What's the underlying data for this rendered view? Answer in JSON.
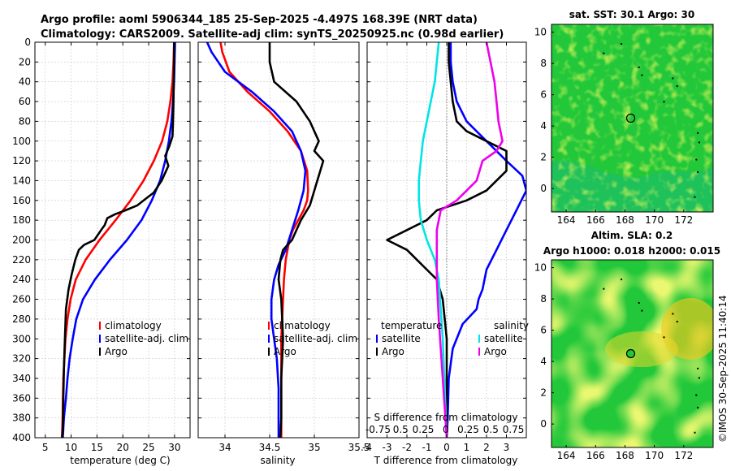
{
  "figure": {
    "title_line1": "Argo profile: aoml 5906344_185 25-Sep-2025 -4.497S 168.39E (NRT data)",
    "title_line2": "Climatology: CARS2009. Satellite-adj clim: synTS_20250925.nc (0.98d earlier)",
    "credit": "©IMOS 30-Sep-2025 11:40:14"
  },
  "colors": {
    "climatology": "#ff0000",
    "satellite": "#0000ff",
    "argo": "#000000",
    "sat_salinity": "#00e5e5",
    "argo_salinity": "#ee00ee",
    "grid": "#c8c8c8",
    "map_green": "#22c83a",
    "map_yellow": "#d8ec30"
  },
  "chart_data": [
    {
      "type": "line",
      "id": "temperature",
      "xlabel": "temperature (deg C)",
      "ylabel": "",
      "xlim": [
        3,
        33
      ],
      "ylim": [
        0,
        400
      ],
      "xticks": [
        5,
        10,
        15,
        20,
        25,
        30
      ],
      "yticks": [
        0,
        20,
        40,
        60,
        80,
        100,
        120,
        140,
        160,
        180,
        200,
        220,
        240,
        260,
        280,
        300,
        320,
        340,
        360,
        380,
        400
      ],
      "y_inverted": true,
      "grid": true,
      "legend": [
        "climatology",
        "satellite-adj. clim",
        "Argo"
      ],
      "series": [
        {
          "name": "climatology",
          "x": [
            29.9,
            29.8,
            29.6,
            29.2,
            28.6,
            27.6,
            26.0,
            24.0,
            21.5,
            18.6,
            15.5,
            12.8,
            10.9,
            9.9,
            9.3,
            8.9,
            8.7,
            8.5,
            8.4,
            8.35,
            8.3,
            8.25,
            8.2
          ],
          "y": [
            0,
            20,
            40,
            60,
            80,
            100,
            120,
            140,
            160,
            180,
            200,
            220,
            240,
            260,
            280,
            300,
            320,
            340,
            360,
            380,
            390,
            396,
            400
          ]
        },
        {
          "name": "satellite-adj. clim",
          "x": [
            30.1,
            30.0,
            29.9,
            29.7,
            29.4,
            28.9,
            28.2,
            27.2,
            25.6,
            23.6,
            20.8,
            17.5,
            14.6,
            12.3,
            11.0,
            10.3,
            9.7,
            9.3,
            9.0,
            8.8,
            8.6,
            8.5,
            8.45,
            8.4,
            8.4
          ],
          "y": [
            0,
            20,
            40,
            60,
            80,
            100,
            120,
            140,
            160,
            180,
            200,
            220,
            240,
            260,
            280,
            300,
            320,
            340,
            360,
            370,
            380,
            390,
            395,
            398,
            400
          ]
        },
        {
          "name": "Argo",
          "x": [
            29.9,
            29.9,
            29.85,
            29.8,
            29.7,
            29.6,
            29.0,
            28.2,
            28.8,
            27.5,
            26.0,
            24.5,
            22.8,
            20.5,
            18.5,
            17.0,
            16.5,
            15.8,
            14.5,
            12.5,
            11.5,
            10.8,
            10.1,
            9.5,
            9.0,
            8.8,
            8.6,
            8.5,
            8.4,
            8.3
          ],
          "y": [
            0,
            20,
            40,
            60,
            80,
            95,
            105,
            115,
            125,
            140,
            152,
            158,
            165,
            170,
            174,
            178,
            185,
            190,
            200,
            205,
            210,
            220,
            235,
            250,
            270,
            300,
            330,
            360,
            390,
            400
          ]
        }
      ]
    },
    {
      "type": "line",
      "id": "salinity",
      "xlabel": "salinity",
      "ylabel": "",
      "xlim": [
        33.7,
        35.5
      ],
      "ylim": [
        0,
        400
      ],
      "xticks": [
        34,
        34.5,
        35,
        35.5
      ],
      "y_inverted": true,
      "grid": true,
      "legend": [
        "climatology",
        "satellite-adj. clim",
        "Argo"
      ],
      "series": [
        {
          "name": "climatology",
          "x": [
            33.95,
            33.97,
            34.05,
            34.25,
            34.5,
            34.7,
            34.85,
            34.92,
            34.93,
            34.92,
            34.88,
            34.82,
            34.76,
            34.72,
            34.68,
            34.66,
            34.65,
            34.64,
            34.63,
            34.63,
            34.63,
            34.63,
            34.63
          ],
          "y": [
            0,
            10,
            30,
            50,
            70,
            90,
            110,
            130,
            150,
            160,
            170,
            180,
            190,
            200,
            220,
            240,
            260,
            280,
            300,
            320,
            350,
            380,
            400
          ]
        },
        {
          "name": "satellite-adj. clim",
          "x": [
            33.8,
            33.85,
            34.0,
            34.3,
            34.55,
            34.75,
            34.85,
            34.9,
            34.88,
            34.82,
            34.75,
            34.68,
            34.6,
            34.55,
            34.52,
            34.52,
            34.55,
            34.58,
            34.6,
            34.6,
            34.6
          ],
          "y": [
            0,
            10,
            30,
            50,
            70,
            90,
            110,
            130,
            150,
            170,
            190,
            210,
            225,
            240,
            260,
            280,
            300,
            320,
            350,
            380,
            400
          ]
        },
        {
          "name": "Argo",
          "x": [
            34.5,
            34.5,
            34.55,
            34.8,
            34.95,
            35.05,
            35.0,
            35.1,
            35.05,
            35.0,
            34.95,
            34.85,
            34.75,
            34.65,
            34.62,
            34.6,
            34.63,
            34.65,
            34.63,
            34.63,
            34.62
          ],
          "y": [
            0,
            20,
            40,
            60,
            80,
            100,
            110,
            120,
            135,
            150,
            165,
            180,
            200,
            210,
            220,
            240,
            260,
            300,
            340,
            380,
            400
          ]
        }
      ]
    },
    {
      "type": "line",
      "id": "differences",
      "xlabel": "T difference from climatology",
      "xlabel_top": "S difference from climatology",
      "xlim": [
        -4,
        4
      ],
      "ylim": [
        0,
        400
      ],
      "xticks": [
        -4,
        -3,
        -2,
        -1,
        0,
        1,
        2,
        3
      ],
      "x_ticklabels": [
        "-4",
        "-3",
        "-2",
        "-1",
        "0",
        "1",
        "2",
        "3"
      ],
      "s_ticklabels": [
        "-0.75",
        "0.5",
        "0.25",
        "0",
        "0.25",
        "0.5",
        "0.75"
      ],
      "y_inverted": true,
      "grid": true,
      "legend_temperature_title": "temperature",
      "legend_salinity_title": "salinity",
      "legend": {
        "temperature": [
          "satellite",
          "Argo"
        ],
        "salinity": [
          "satellite",
          "Argo"
        ]
      },
      "series": [
        {
          "name": "temperature satellite",
          "group": "temperature",
          "x": [
            0.2,
            0.2,
            0.3,
            0.5,
            1.0,
            2.0,
            3.0,
            3.8,
            4.0,
            3.5,
            3.0,
            2.5,
            2.0,
            1.8,
            1.6,
            1.5,
            0.8,
            0.3,
            0.1,
            0.05,
            0.0
          ],
          "y": [
            0,
            20,
            40,
            60,
            80,
            100,
            120,
            135,
            150,
            170,
            190,
            210,
            230,
            250,
            260,
            270,
            285,
            310,
            340,
            380,
            400
          ]
        },
        {
          "name": "temperature Argo",
          "group": "temperature",
          "x": [
            0.1,
            0.1,
            0.2,
            0.3,
            0.5,
            1.0,
            2.0,
            3.0,
            3.0,
            2.0,
            1.0,
            -0.5,
            -1.0,
            -2.0,
            -3.0,
            -2.0,
            -1.5,
            -1.0,
            -0.5,
            -0.2,
            0.0,
            0.0
          ],
          "y": [
            0,
            20,
            40,
            60,
            80,
            90,
            100,
            110,
            130,
            150,
            160,
            170,
            180,
            190,
            200,
            210,
            220,
            230,
            240,
            260,
            300,
            400
          ]
        },
        {
          "name": "salinity satellite",
          "group": "salinity",
          "x": [
            -0.4,
            -0.5,
            -0.6,
            -0.8,
            -1.0,
            -1.2,
            -1.3,
            -1.4,
            -1.4,
            -1.3,
            -1.0,
            -0.6,
            -0.4,
            -0.3,
            -0.2,
            -0.1,
            0.0
          ],
          "y": [
            0,
            20,
            40,
            60,
            80,
            100,
            120,
            140,
            160,
            180,
            200,
            220,
            240,
            270,
            300,
            350,
            400
          ]
        },
        {
          "name": "salinity Argo",
          "group": "salinity",
          "x": [
            2.0,
            2.2,
            2.4,
            2.5,
            2.6,
            2.8,
            2.5,
            1.8,
            1.5,
            0.5,
            -0.3,
            -0.5,
            -0.5,
            -0.5,
            -0.4,
            -0.2,
            0.0
          ],
          "y": [
            0,
            20,
            40,
            60,
            80,
            100,
            110,
            120,
            140,
            160,
            170,
            190,
            210,
            240,
            280,
            340,
            400
          ]
        }
      ]
    },
    {
      "type": "heatmap",
      "id": "sst-map",
      "title": "sat. SST: 30.1 Argo: 30",
      "xlim": [
        163,
        174
      ],
      "ylim": [
        -1.5,
        10.5
      ],
      "xticks": [
        164,
        166,
        168,
        170,
        172
      ],
      "yticks": [
        0,
        2,
        4,
        6,
        8,
        10
      ],
      "marker": {
        "lon": 168.39,
        "lat": 4.5
      }
    },
    {
      "type": "heatmap",
      "id": "sla-map",
      "title": "Altim. SLA: 0.2",
      "subtitle": "Argo h1000: 0.018 h2000: 0.015",
      "xlim": [
        163,
        174
      ],
      "ylim": [
        -1.5,
        10.5
      ],
      "xticks": [
        164,
        166,
        168,
        170,
        172
      ],
      "yticks": [
        0,
        2,
        4,
        6,
        8,
        10
      ],
      "marker": {
        "lon": 168.39,
        "lat": 4.5
      }
    }
  ]
}
